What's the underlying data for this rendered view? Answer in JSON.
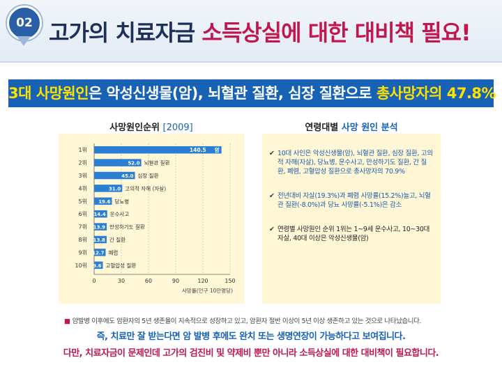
{
  "header": {
    "badge": "02",
    "title_part1": "고가의 치료자금 ",
    "title_part2": "소득상실에 대한 대비책 필요!"
  },
  "banner": {
    "part1": "3대 사망원인",
    "part2": "은 악성신생물(암), 뇌혈관 질환, 심장 질환으로 ",
    "part3": "총사망자의 47.8%"
  },
  "left_panel": {
    "heading": "사망원인순위 ",
    "year": "[2009]"
  },
  "right_panel": {
    "heading": "연령대별 ",
    "heading_highlight": "사망 원인 분석",
    "items": [
      "10대 사인은 악성신생물(암), 뇌혈관 질환, 심장 질환, 고의적 자해(자살), 당뇨병, 운수사고, 만성하기도 질환, 간 질환, 폐렴, 고혈압성 질환으로 총사망자의 70.9%",
      "전년대비 자살(19.3%)과 폐렴 사망률(15.2%)늘고, 뇌혈관 질환(-8.0%)과 당뇨 사망률(-5.1%)은 감소",
      "연령별 사망원인 순위 1위는 1~9세 운수사고, 10~30대 자살, 40대 이상은 악성신생물(암)"
    ]
  },
  "chart_data": {
    "type": "bar",
    "orientation": "horizontal",
    "categories": [
      "1위",
      "2위",
      "3위",
      "4위",
      "5위",
      "6위",
      "7위",
      "8위",
      "9위",
      "10위"
    ],
    "values": [
      140.5,
      52.0,
      45.0,
      31.0,
      19.6,
      14.4,
      13.9,
      13.8,
      12.7,
      9.6
    ],
    "value_labels": [
      "140.5",
      "52.0",
      "45.0",
      "31.0",
      "19.6",
      "14.4",
      "13.9",
      "13.8",
      "12.7",
      "9.6"
    ],
    "bar_labels": [
      "암",
      "뇌혈관 질환",
      "심장 질환",
      "고의적 자해 (자살)",
      "당뇨병",
      "운수사고",
      "만성하기도 질환",
      "간 질환",
      "폐렴",
      "고혈압성 질환"
    ],
    "x_ticks": [
      "0",
      "30",
      "60",
      "90",
      "120",
      "150"
    ],
    "xlim": [
      0,
      150
    ],
    "xlabel": "사망률(인구 10만명당)",
    "grid": true,
    "bar_color": "#2a7fd4"
  },
  "footnote": {
    "marker": "■",
    "text": "암발병 이후에도 암환자의 5년 생존율이 지속적으로 성장하고 있고, 암환자 절반 이상이 5년 이상 생존하고 있는 것으로 나타났습니다."
  },
  "conclusion": {
    "line1": "즉, 치료만 잘 받는다면 암 발병 후에도 완치 또는 생명연장이 가능하다고 보여집니다.",
    "line2": "다만, 치료자금이 문제인데 고가의 검진비 및 약제비 뿐만 아니라 소득상실에 대한 대비책이 필요합니다."
  }
}
